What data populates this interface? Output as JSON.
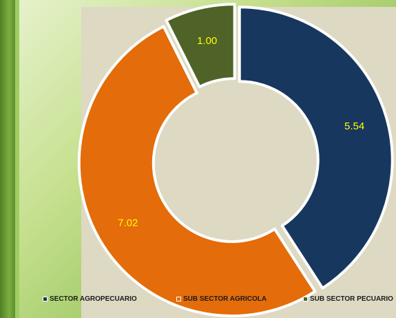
{
  "chart_data": {
    "type": "pie",
    "donut": true,
    "title": "",
    "slices": [
      {
        "label": "SECTOR AGROPECUARIO",
        "value": 5.54,
        "display": "5.54",
        "color": "#17375e"
      },
      {
        "label": "SUB SECTOR AGRICOLA",
        "value": 7.02,
        "display": "7.02",
        "color": "#e46c0a"
      },
      {
        "label": "SUB SECTOR PECUARIO",
        "value": 1.0,
        "display": "1.00",
        "color": "#4f6228"
      }
    ],
    "legend_position": "bottom",
    "label_color": "#ffff00",
    "background_color": "#ddd9c3"
  },
  "legend": {
    "items": [
      {
        "label": "SECTOR AGROPECUARIO",
        "color": "#17375e"
      },
      {
        "label": "SUB SECTOR AGRICOLA",
        "color": "#e46c0a"
      },
      {
        "label": "SUB SECTOR PECUARIO",
        "color": "#4f6228"
      }
    ]
  }
}
